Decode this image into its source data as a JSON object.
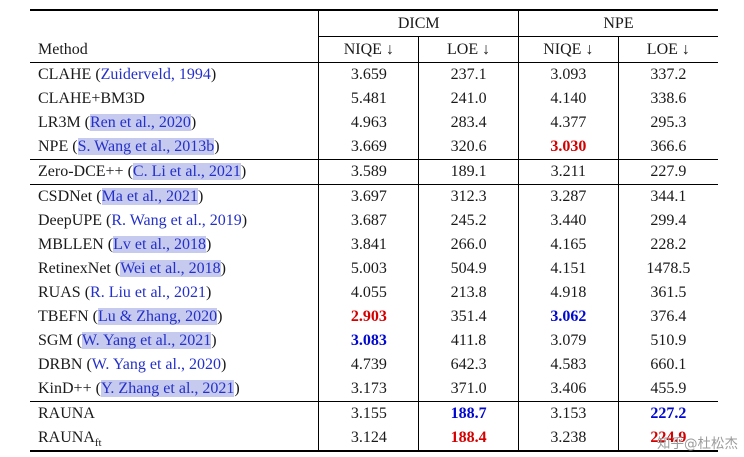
{
  "colors": {
    "link_blue": "#2430c8",
    "highlight": "#c6caef",
    "best_red": "#d40000",
    "second_blue": "#0008d0",
    "watermark_gray": "#9b9b9b"
  },
  "watermark": "知乎@杜松杰",
  "table": {
    "method_header": "Method",
    "cite_open": "(",
    "cite_close": ")",
    "group_headers": [
      {
        "label": "DICM"
      },
      {
        "label": "NPE"
      }
    ],
    "metric_headers": [
      "NIQE ↓",
      "LOE ↓",
      "NIQE ↓",
      "LOE ↓"
    ],
    "groups": [
      {
        "rows": [
          {
            "method": "CLAHE",
            "cite": "Zuiderveld, 1994",
            "hl": false,
            "values": [
              {
                "t": "3.659"
              },
              {
                "t": "237.1"
              },
              {
                "t": "3.093"
              },
              {
                "t": "337.2"
              }
            ]
          },
          {
            "method": "CLAHE+BM3D",
            "cite": "",
            "hl": false,
            "values": [
              {
                "t": "5.481"
              },
              {
                "t": "241.0"
              },
              {
                "t": "4.140"
              },
              {
                "t": "338.6"
              }
            ]
          },
          {
            "method": "LR3M",
            "cite": "Ren et al., 2020",
            "hl": true,
            "values": [
              {
                "t": "4.963"
              },
              {
                "t": "283.4"
              },
              {
                "t": "4.377"
              },
              {
                "t": "295.3"
              }
            ]
          },
          {
            "method": "NPE",
            "cite": "S. Wang et al., 2013b",
            "hl": true,
            "values": [
              {
                "t": "3.669"
              },
              {
                "t": "320.6"
              },
              {
                "t": "3.030",
                "s": "red"
              },
              {
                "t": "366.6"
              }
            ]
          }
        ]
      },
      {
        "rows": [
          {
            "method": "Zero-DCE++",
            "cite": "C. Li et al., 2021",
            "hl": true,
            "values": [
              {
                "t": "3.589"
              },
              {
                "t": "189.1"
              },
              {
                "t": "3.211"
              },
              {
                "t": "227.9"
              }
            ]
          }
        ]
      },
      {
        "rows": [
          {
            "method": "CSDNet",
            "cite": "Ma et al., 2021",
            "hl": true,
            "values": [
              {
                "t": "3.697"
              },
              {
                "t": "312.3"
              },
              {
                "t": "3.287"
              },
              {
                "t": "344.1"
              }
            ]
          },
          {
            "method": "DeepUPE",
            "cite": "R. Wang et al., 2019",
            "hl": false,
            "values": [
              {
                "t": "3.687"
              },
              {
                "t": "245.2"
              },
              {
                "t": "3.440"
              },
              {
                "t": "299.4"
              }
            ]
          },
          {
            "method": "MBLLEN",
            "cite": "Lv et al., 2018",
            "hl": true,
            "values": [
              {
                "t": "3.841"
              },
              {
                "t": "266.0"
              },
              {
                "t": "4.165"
              },
              {
                "t": "228.2"
              }
            ]
          },
          {
            "method": "RetinexNet",
            "cite": "Wei et al., 2018",
            "hl": true,
            "values": [
              {
                "t": "5.003"
              },
              {
                "t": "504.9"
              },
              {
                "t": "4.151"
              },
              {
                "t": "1478.5"
              }
            ]
          },
          {
            "method": "RUAS",
            "cite": "R. Liu et al., 2021",
            "hl": false,
            "values": [
              {
                "t": "4.055"
              },
              {
                "t": "213.8"
              },
              {
                "t": "4.918"
              },
              {
                "t": "361.5"
              }
            ]
          },
          {
            "method": "TBEFN",
            "cite": "Lu & Zhang, 2020",
            "hl": true,
            "values": [
              {
                "t": "2.903",
                "s": "red"
              },
              {
                "t": "351.4"
              },
              {
                "t": "3.062",
                "s": "blue"
              },
              {
                "t": "376.4"
              }
            ]
          },
          {
            "method": "SGM",
            "cite": "W. Yang et al., 2021",
            "hl": true,
            "values": [
              {
                "t": "3.083",
                "s": "blue"
              },
              {
                "t": "411.8"
              },
              {
                "t": "3.079"
              },
              {
                "t": "510.9"
              }
            ]
          },
          {
            "method": "DRBN",
            "cite": "W. Yang et al., 2020",
            "hl": false,
            "values": [
              {
                "t": "4.739"
              },
              {
                "t": "642.3"
              },
              {
                "t": "4.583"
              },
              {
                "t": "660.1"
              }
            ]
          },
          {
            "method": "KinD++",
            "cite": "Y. Zhang et al., 2021",
            "hl": true,
            "values": [
              {
                "t": "3.173"
              },
              {
                "t": "371.0"
              },
              {
                "t": "3.406"
              },
              {
                "t": "455.9"
              }
            ]
          }
        ]
      },
      {
        "rows": [
          {
            "method": "RAUNA",
            "cite": "",
            "hl": false,
            "values": [
              {
                "t": "3.155"
              },
              {
                "t": "188.7",
                "s": "blue"
              },
              {
                "t": "3.153"
              },
              {
                "t": "227.2",
                "s": "blue"
              }
            ]
          },
          {
            "method": "RAUNA",
            "sub": "ft",
            "cite": "",
            "hl": false,
            "values": [
              {
                "t": "3.124"
              },
              {
                "t": "188.4",
                "s": "red"
              },
              {
                "t": "3.238"
              },
              {
                "t": "224.9",
                "s": "red"
              }
            ]
          }
        ]
      }
    ]
  }
}
